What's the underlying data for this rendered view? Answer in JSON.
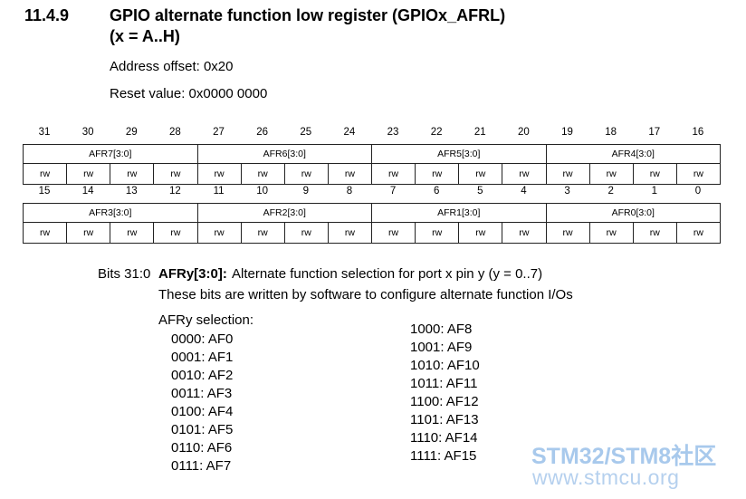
{
  "section": {
    "number": "11.4.9",
    "title_lines": [
      "GPIO alternate function low register (GPIOx_AFRL)",
      "(x = A..H)"
    ],
    "address_offset": "Address offset: 0x20",
    "reset_value": "Reset value: 0x0000 0000"
  },
  "register": {
    "rows": [
      {
        "bits": [
          31,
          30,
          29,
          28,
          27,
          26,
          25,
          24,
          23,
          22,
          21,
          20,
          19,
          18,
          17,
          16
        ],
        "fields": [
          "AFR7[3:0]",
          "AFR6[3:0]",
          "AFR5[3:0]",
          "AFR4[3:0]"
        ],
        "access": [
          "rw",
          "rw",
          "rw",
          "rw",
          "rw",
          "rw",
          "rw",
          "rw",
          "rw",
          "rw",
          "rw",
          "rw",
          "rw",
          "rw",
          "rw",
          "rw"
        ]
      },
      {
        "bits": [
          15,
          14,
          13,
          12,
          11,
          10,
          9,
          8,
          7,
          6,
          5,
          4,
          3,
          2,
          1,
          0
        ],
        "fields": [
          "AFR3[3:0]",
          "AFR2[3:0]",
          "AFR1[3:0]",
          "AFR0[3:0]"
        ],
        "access": [
          "rw",
          "rw",
          "rw",
          "rw",
          "rw",
          "rw",
          "rw",
          "rw",
          "rw",
          "rw",
          "rw",
          "rw",
          "rw",
          "rw",
          "rw",
          "rw"
        ]
      }
    ]
  },
  "description": {
    "bits": "Bits 31:0",
    "field": "AFRy[3:0]:",
    "summary": "Alternate function selection for port x pin y (y = 0..7)",
    "detail": "These bits are written by software to configure alternate function I/Os",
    "selection_label": "AFRy selection:",
    "options_left": [
      "0000: AF0",
      "0001: AF1",
      "0010: AF2",
      "0011: AF3",
      "0100: AF4",
      "0101: AF5",
      "0110: AF6",
      "0111: AF7"
    ],
    "options_right": [
      "1000: AF8",
      "1001: AF9",
      "1010: AF10",
      "1011: AF11",
      "1100: AF12",
      "1101: AF13",
      "1110: AF14",
      "1111: AF15"
    ]
  },
  "watermark": {
    "brand": "STM32/STM8社区",
    "url": "www.stmcu.org"
  }
}
